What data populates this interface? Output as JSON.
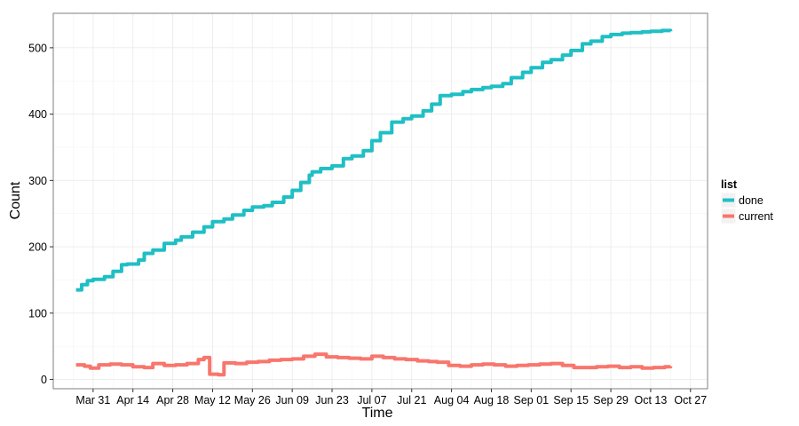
{
  "chart_data": {
    "type": "line",
    "title": "",
    "xlabel": "Time",
    "ylabel": "Count",
    "x_tick_labels": [
      "Mar 31",
      "Apr 14",
      "Apr 28",
      "May 12",
      "May 26",
      "Jun 09",
      "Jun 23",
      "Jul 07",
      "Jul 21",
      "Aug 04",
      "Aug 18",
      "Sep 01",
      "Sep 15",
      "Sep 29",
      "Oct 13",
      "Oct 27"
    ],
    "y_ticks": [
      0,
      100,
      200,
      300,
      400,
      500
    ],
    "xlim_days": [
      -14,
      216
    ],
    "ylim": [
      -14,
      552
    ],
    "grid": true,
    "legend": {
      "title": "list",
      "position": "right"
    },
    "series": [
      {
        "name": "done",
        "color": "#1FBFC4",
        "x_days": [
          -6,
          -4,
          -2,
          0,
          4,
          7,
          10,
          12,
          16,
          18,
          21,
          25,
          29,
          31,
          35,
          39,
          42,
          46,
          49,
          53,
          56,
          60,
          63,
          67,
          70,
          73,
          76,
          77,
          80,
          84,
          88,
          91,
          95,
          98,
          101,
          105,
          109,
          112,
          116,
          119,
          122,
          126,
          130,
          133,
          137,
          140,
          144,
          147,
          151,
          154,
          158,
          161,
          165,
          168,
          172,
          175,
          179,
          182,
          186,
          189,
          193,
          196,
          200,
          203
        ],
        "values": [
          135,
          143,
          149,
          151,
          155,
          163,
          173,
          174,
          180,
          190,
          195,
          205,
          210,
          215,
          222,
          230,
          238,
          242,
          248,
          255,
          260,
          262,
          267,
          275,
          285,
          297,
          308,
          313,
          318,
          322,
          333,
          337,
          345,
          360,
          372,
          388,
          393,
          397,
          405,
          415,
          428,
          430,
          434,
          437,
          440,
          442,
          446,
          455,
          463,
          470,
          478,
          482,
          489,
          496,
          506,
          510,
          517,
          520,
          522,
          523,
          524,
          525,
          526,
          525
        ]
      },
      {
        "name": "current",
        "color": "#F8766D",
        "x_days": [
          -6,
          -3,
          -1,
          2,
          6,
          10,
          14,
          18,
          21,
          25,
          29,
          33,
          37,
          39,
          41,
          43,
          44,
          46,
          50,
          54,
          58,
          62,
          66,
          70,
          74,
          78,
          82,
          86,
          90,
          94,
          98,
          102,
          106,
          110,
          114,
          118,
          121,
          125,
          129,
          133,
          137,
          141,
          145,
          149,
          153,
          157,
          161,
          165,
          169,
          173,
          177,
          181,
          185,
          189,
          193,
          197,
          201,
          203
        ],
        "values": [
          22,
          20,
          17,
          22,
          23,
          22,
          19,
          18,
          24,
          21,
          22,
          24,
          30,
          33,
          8,
          8,
          7,
          25,
          24,
          26,
          27,
          29,
          30,
          31,
          35,
          38,
          34,
          33,
          32,
          31,
          35,
          33,
          31,
          30,
          28,
          27,
          26,
          21,
          20,
          22,
          23,
          22,
          20,
          21,
          22,
          23,
          24,
          21,
          18,
          18,
          19,
          20,
          18,
          19,
          17,
          18,
          19,
          20
        ]
      }
    ]
  }
}
